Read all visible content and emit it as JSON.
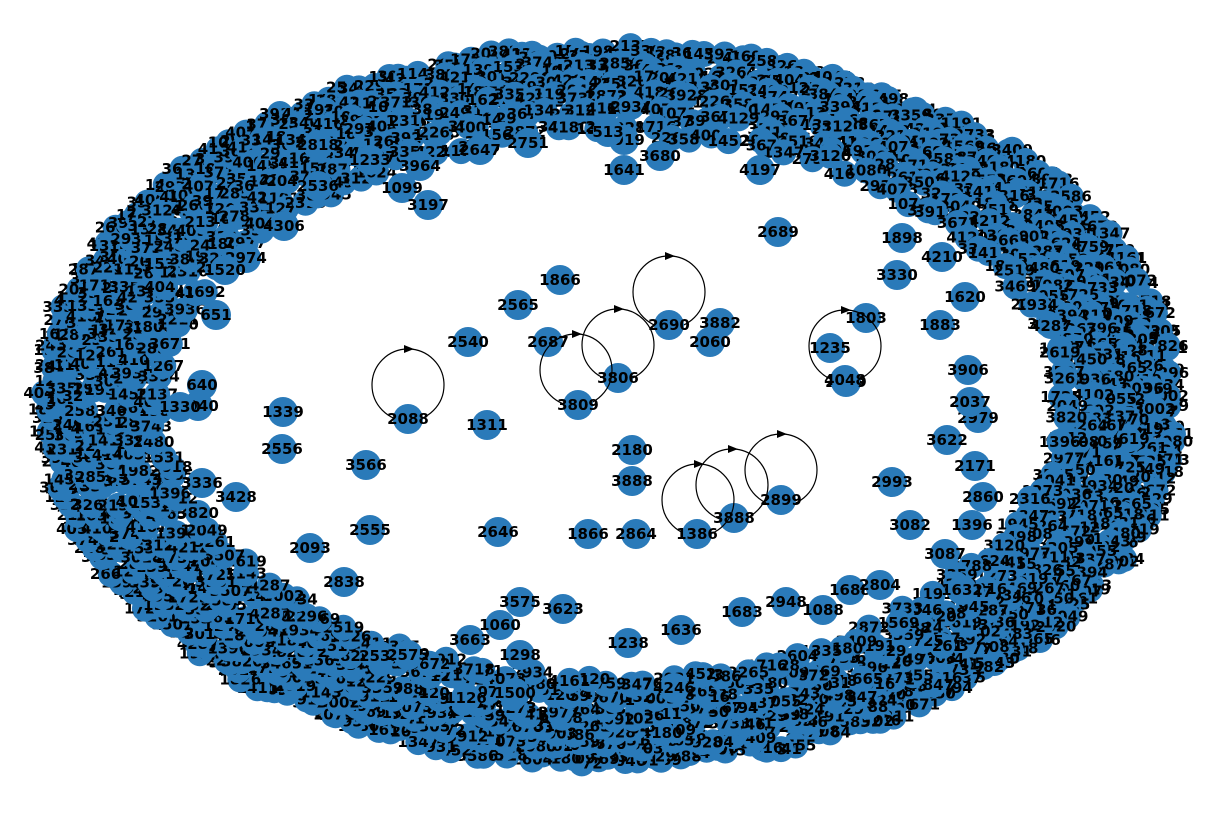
{
  "graph": {
    "node_color": "#2a7ab9",
    "label_color": "#000000",
    "edge_color": "#000000",
    "loop_node_labels": [
      "2088",
      "3806",
      "2690",
      "3809",
      "2899",
      "3888",
      "1386",
      "4048"
    ],
    "inner_node_labels": [
      "1866",
      "2565",
      "2540",
      "2687",
      "3882",
      "2060",
      "1803",
      "1235",
      "2939",
      "3906",
      "1339",
      "2556",
      "3566",
      "1311",
      "2180",
      "3888",
      "2555",
      "2646",
      "1866",
      "2864",
      "2093",
      "2838",
      "3575",
      "3623",
      "2948",
      "1088",
      "1683",
      "1688",
      "2804",
      "3082",
      "2993",
      "1396",
      "1500",
      "1126",
      "4246",
      "1636",
      "1298",
      "1060",
      "3663",
      "1238",
      "2533",
      "2575",
      "3428",
      "3336",
      "3622",
      "2979",
      "2037",
      "2171",
      "2860",
      "3087",
      "1632",
      "4210",
      "2689",
      "3330",
      "1898",
      "4197",
      "1641",
      "3919",
      "513",
      "3680",
      "2751",
      "2647",
      "3964",
      "1099",
      "3197",
      "2536",
      "4306",
      "2974",
      "3940",
      "651",
      "640",
      "1330",
      "2818",
      "1233",
      "1883",
      "1620",
      "1520"
    ],
    "ring_node_labels": [
      "1347",
      "2759",
      "3120",
      "4161",
      "1080",
      "2934",
      "4073",
      "1071",
      "3718",
      "3912",
      "3672",
      "4129",
      "3305",
      "1411",
      "1826",
      "2519",
      "3469",
      "2296",
      "1934",
      "3002",
      "4287",
      "1143",
      "2619",
      "3507",
      "3261",
      "1725",
      "2049",
      "3820",
      "4212",
      "1396",
      "2665",
      "3018",
      "1531",
      "2480",
      "3743",
      "1982",
      "4055",
      "2137",
      "3394",
      "1267",
      "2850",
      "3671",
      "1450",
      "2211",
      "3936",
      "4102",
      "1692",
      "2583",
      "3264",
      "1808",
      "2977",
      "3555",
      "4041",
      "1273",
      "2316",
      "3847",
      "1945",
      "2498",
      "3120",
      "1624",
      "2788",
      "3359",
      "4229",
      "1191",
      "2046",
      "3733",
      "1569",
      "2872",
      "3409",
      "4180",
      "1335",
      "2604",
      "3928",
      "1716",
      "2265",
      "3586",
      "4003",
      "1452",
      "2931",
      "3670"
    ]
  }
}
